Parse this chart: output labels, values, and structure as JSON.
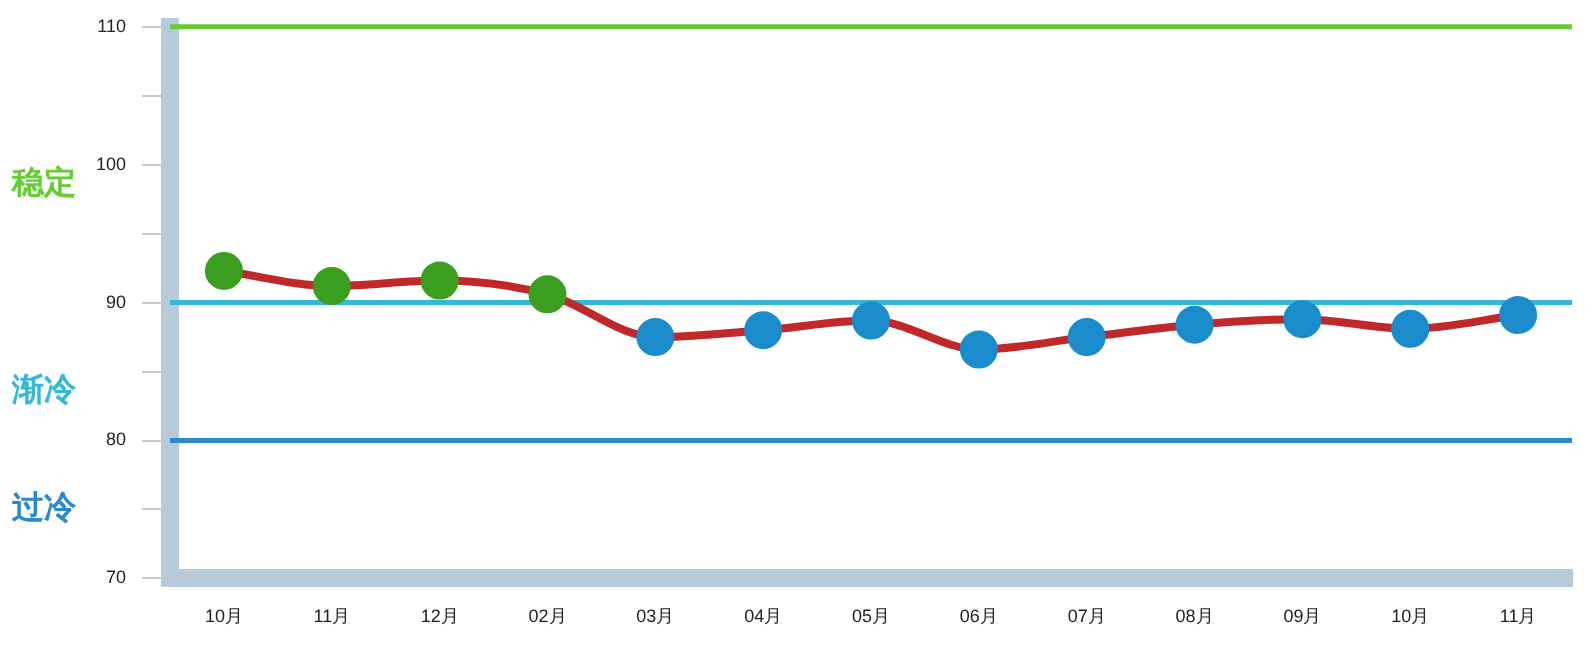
{
  "chart_data": {
    "type": "line",
    "categories": [
      "10月",
      "11月",
      "12月",
      "02月",
      "03月",
      "04月",
      "05月",
      "06月",
      "07月",
      "08月",
      "09月",
      "10月",
      "11月"
    ],
    "series": [
      {
        "color": "#c0282a",
        "colors": [
          "#3c9e1e",
          "#3c9e1e",
          "#3c9e1e",
          "#3c9e1e",
          "#1a8ccc",
          "#1a8ccc",
          "#1a8ccc",
          "#1a8ccc",
          "#1a8ccc",
          "#1a8ccc",
          "#1a8ccc",
          "#1a8ccc",
          "#1a8ccc"
        ],
        "values": [
          92.3,
          91.2,
          91.6,
          90.6,
          87.5,
          88.0,
          88.7,
          86.6,
          87.5,
          88.4,
          88.8,
          88.1,
          89.1
        ]
      }
    ],
    "ylim": [
      70,
      110
    ],
    "yticks": [
      70,
      {
        "value": 75,
        "label": null
      },
      80,
      {
        "value": 85,
        "label": null
      },
      90,
      {
        "value": 95,
        "label": null
      },
      100,
      {
        "value": 105,
        "label": null
      },
      110
    ],
    "ref_lines": [
      {
        "axis": "y",
        "value": 110,
        "color": "#66cc33"
      },
      {
        "axis": "y",
        "value": 90,
        "color": "#33b8d8"
      },
      {
        "axis": "y",
        "value": 80,
        "color": "#2a88cc"
      }
    ],
    "annotations": [
      "稳定",
      "渐冷",
      "过冷"
    ],
    "marker": "circle",
    "line_style": "solid",
    "grid": false,
    "legend": false
  }
}
